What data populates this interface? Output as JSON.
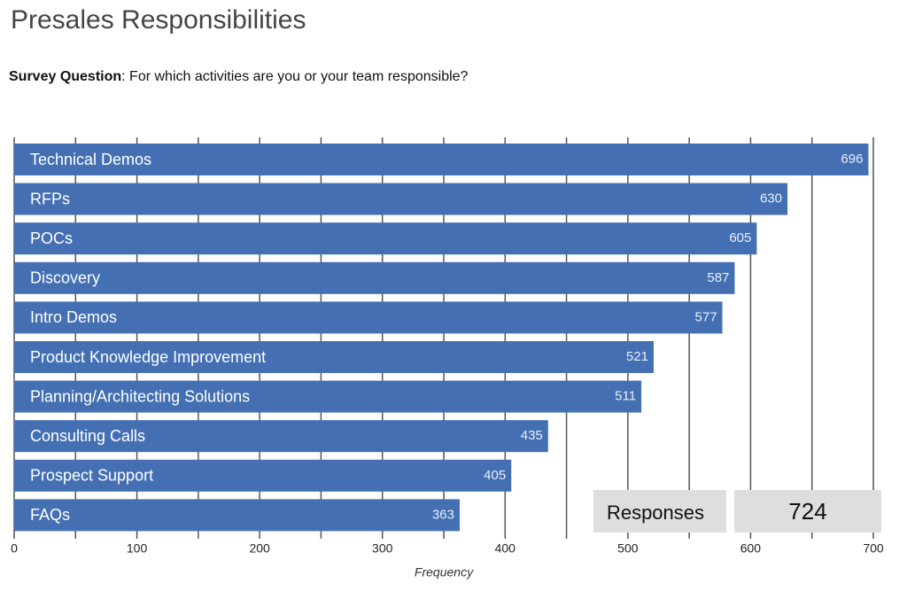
{
  "chart_data": {
    "type": "hbar",
    "title": "Presales Responsibilities",
    "subtitle_label": "Survey Question",
    "subtitle": ": For which activities are you or your team responsible?",
    "x_label": "Frequency",
    "categories": [
      "Technical Demos",
      "RFPs",
      "POCs",
      "Discovery",
      "Intro Demos",
      "Product Knowledge Improvement",
      "Planning/Architecting Solutions",
      "Consulting Calls",
      "Prospect Support",
      "FAQs"
    ],
    "values": [
      696,
      630,
      605,
      587,
      577,
      521,
      511,
      435,
      405,
      363
    ],
    "color": "#4470b3",
    "xlim": [
      0,
      700
    ],
    "xticks": [
      0,
      100,
      200,
      300,
      400,
      500,
      600,
      700
    ],
    "minor_xticks": [
      50,
      150,
      250,
      350,
      450,
      550,
      650
    ],
    "grid": true,
    "responses": {
      "label": "Responses",
      "value": 724
    }
  }
}
